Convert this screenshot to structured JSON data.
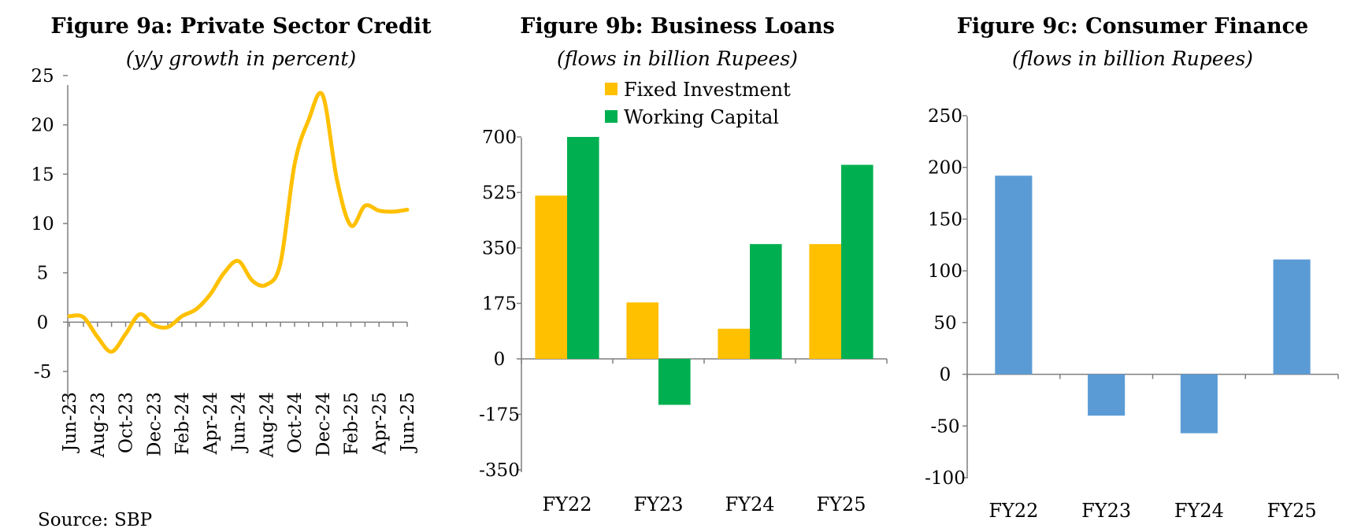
{
  "source_note": "Source: SBP",
  "colors": {
    "gold": "#FFC000",
    "green": "#00B050",
    "blue": "#5B9BD5",
    "axis": "#7F7F7F"
  },
  "chart_data": [
    {
      "id": "fig9a",
      "type": "line",
      "title": "Figure 9a: Private Sector Credit",
      "subtitle": "(y/y growth in percent)",
      "ylim": [
        -5,
        25
      ],
      "yticks": [
        25,
        20,
        15,
        10,
        5,
        0,
        -5
      ],
      "tick_labels": [
        "Jun-23",
        "Aug-23",
        "Oct-23",
        "Dec-23",
        "Feb-24",
        "Apr-24",
        "Jun-24",
        "Aug-24",
        "Oct-24",
        "Dec-24",
        "Feb-25",
        "Apr-25",
        "Jun-25"
      ],
      "x": [
        "Jun-23",
        "Jul-23",
        "Aug-23",
        "Sep-23",
        "Oct-23",
        "Nov-23",
        "Dec-23",
        "Jan-24",
        "Feb-24",
        "Mar-24",
        "Apr-24",
        "May-24",
        "Jun-24",
        "Jul-24",
        "Aug-24",
        "Sep-24",
        "Oct-24",
        "Nov-24",
        "Dec-24",
        "Jan-25",
        "Feb-25",
        "Mar-25",
        "Apr-25",
        "May-25",
        "Jun-25"
      ],
      "series": [
        {
          "values": [
            0.6,
            0.5,
            -1.5,
            -3.0,
            -1.2,
            0.8,
            -0.3,
            -0.5,
            0.6,
            1.3,
            2.8,
            5.0,
            6.2,
            4.2,
            3.8,
            6.0,
            16.0,
            20.5,
            23.0,
            14.5,
            9.8,
            11.8,
            11.3,
            11.2,
            11.4
          ]
        }
      ],
      "grid": false
    },
    {
      "id": "fig9b",
      "type": "bar",
      "title": "Figure 9b: Business Loans",
      "subtitle": "(flows in billion Rupees)",
      "categories": [
        "FY22",
        "FY23",
        "FY24",
        "FY25"
      ],
      "ylim": [
        -350,
        700
      ],
      "yticks": [
        700,
        525,
        350,
        175,
        0,
        -175,
        -350
      ],
      "series": [
        {
          "name": "Fixed Investment",
          "color": "#FFC000",
          "values": [
            515,
            178,
            95,
            362
          ]
        },
        {
          "name": "Working Capital",
          "color": "#00B050",
          "values": [
            700,
            -145,
            362,
            612
          ]
        }
      ],
      "legend": "top",
      "grid": false
    },
    {
      "id": "fig9c",
      "type": "bar",
      "title": "Figure 9c: Consumer Finance",
      "subtitle": "(flows in billion Rupees)",
      "categories": [
        "FY22",
        "FY23",
        "FY24",
        "FY25"
      ],
      "ylim": [
        -100,
        250
      ],
      "yticks": [
        250,
        200,
        150,
        100,
        50,
        0,
        -50,
        -100
      ],
      "series": [
        {
          "color": "#5B9BD5",
          "values": [
            192,
            -40,
            -57,
            111
          ]
        }
      ],
      "grid": false
    }
  ]
}
